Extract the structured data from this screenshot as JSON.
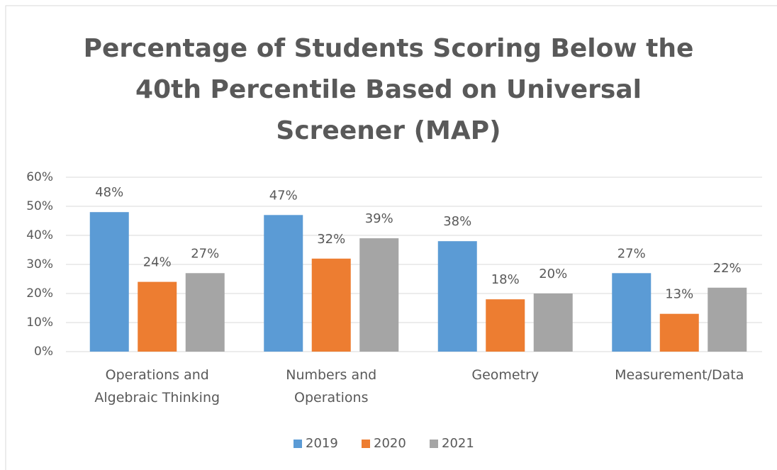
{
  "chart_data": {
    "type": "bar",
    "title": "Percentage of Students Scoring Below the 40th Percentile Based on Universal Screener (MAP)",
    "categories": [
      "Operations and Algebraic Thinking",
      "Numbers and Operations",
      "Geometry",
      "Measurement/Data"
    ],
    "series": [
      {
        "name": "2019",
        "color": "#5b9bd5",
        "values": [
          48,
          47,
          38,
          27
        ],
        "value_labels": [
          "48%",
          "47%",
          "38%",
          "27%"
        ]
      },
      {
        "name": "2020",
        "color": "#ed7d31",
        "values": [
          24,
          32,
          18,
          13
        ],
        "value_labels": [
          "24%",
          "32%",
          "18%",
          "13%"
        ]
      },
      {
        "name": "2021",
        "color": "#a5a5a5",
        "values": [
          27,
          39,
          20,
          22
        ],
        "value_labels": [
          "27%",
          "39%",
          "20%",
          "22%"
        ]
      }
    ],
    "ylim": [
      0,
      60
    ],
    "yticks": [
      {
        "value": 0,
        "label": "0%"
      },
      {
        "value": 10,
        "label": "10%"
      },
      {
        "value": 20,
        "label": "20%"
      },
      {
        "value": 30,
        "label": "30%"
      },
      {
        "value": 40,
        "label": "40%"
      },
      {
        "value": 50,
        "label": "50%"
      },
      {
        "value": 60,
        "label": "60%"
      }
    ],
    "grid": true,
    "legend": "bottom"
  }
}
